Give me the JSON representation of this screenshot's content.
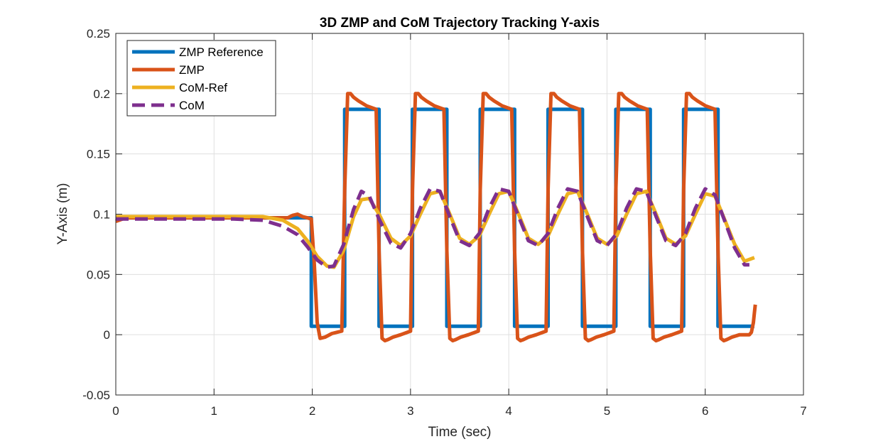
{
  "chart_data": {
    "type": "line",
    "title": "3D ZMP and CoM Trajectory Tracking Y-axis",
    "xlabel": "Time (sec)",
    "ylabel": "Y-Axis (m)",
    "xlim": [
      0,
      7
    ],
    "ylim": [
      -0.05,
      0.25
    ],
    "xticks": [
      0,
      1,
      2,
      3,
      4,
      5,
      6,
      7
    ],
    "xtick_labels": [
      "0",
      "1",
      "2",
      "3",
      "4",
      "5",
      "6",
      "7"
    ],
    "yticks": [
      -0.05,
      0,
      0.05,
      0.1,
      0.15,
      0.2,
      0.25
    ],
    "ytick_labels": [
      "-0.05",
      "0",
      "0.05",
      "0.1",
      "0.15",
      "0.2",
      "0.25"
    ],
    "grid": true,
    "legend_position": "top-left",
    "series": [
      {
        "name": "ZMP Reference",
        "color": "#0072BD",
        "style": "solid",
        "x": [
          0,
          1.99,
          1.99,
          2.33,
          2.33,
          2.68,
          2.68,
          3.02,
          3.02,
          3.37,
          3.37,
          3.71,
          3.71,
          4.06,
          4.06,
          4.4,
          4.4,
          4.75,
          4.75,
          5.09,
          5.09,
          5.44,
          5.44,
          5.78,
          5.78,
          6.13,
          6.13,
          6.5
        ],
        "y": [
          0.097,
          0.097,
          0.007,
          0.007,
          0.187,
          0.187,
          0.007,
          0.007,
          0.187,
          0.187,
          0.007,
          0.007,
          0.187,
          0.187,
          0.007,
          0.007,
          0.187,
          0.187,
          0.007,
          0.007,
          0.187,
          0.187,
          0.007,
          0.007,
          0.187,
          0.187,
          0.007,
          0.007
        ]
      },
      {
        "name": "ZMP",
        "color": "#D95319",
        "style": "solid",
        "x": [
          0,
          0.1,
          1.5,
          1.75,
          1.8,
          1.85,
          1.9,
          1.95,
          1.99,
          2.02,
          2.05,
          2.08,
          2.13,
          2.2,
          2.3,
          2.33,
          2.36,
          2.39,
          2.42,
          2.47,
          2.55,
          2.65,
          2.68,
          2.71,
          2.74,
          2.77,
          2.82,
          2.9,
          3.0,
          3.02,
          3.05,
          3.08,
          3.11,
          3.16,
          3.24,
          3.34,
          3.37,
          3.4,
          3.43,
          3.46,
          3.51,
          3.59,
          3.69,
          3.71,
          3.74,
          3.77,
          3.8,
          3.85,
          3.93,
          4.03,
          4.06,
          4.09,
          4.12,
          4.15,
          4.2,
          4.28,
          4.38,
          4.4,
          4.43,
          4.46,
          4.49,
          4.54,
          4.62,
          4.72,
          4.75,
          4.78,
          4.81,
          4.84,
          4.89,
          4.97,
          5.07,
          5.09,
          5.12,
          5.15,
          5.18,
          5.23,
          5.31,
          5.41,
          5.44,
          5.47,
          5.5,
          5.53,
          5.58,
          5.66,
          5.76,
          5.78,
          5.81,
          5.84,
          5.87,
          5.92,
          6.0,
          6.1,
          6.13,
          6.16,
          6.19,
          6.22,
          6.27,
          6.35,
          6.45,
          6.47,
          6.49,
          6.5,
          6.51
        ],
        "y": [
          0.094,
          0.097,
          0.097,
          0.097,
          0.099,
          0.1,
          0.098,
          0.097,
          0.096,
          0.06,
          0.01,
          -0.003,
          -0.002,
          0.001,
          0.003,
          0.12,
          0.2,
          0.2,
          0.197,
          0.194,
          0.19,
          0.187,
          0.07,
          -0.003,
          -0.005,
          -0.004,
          -0.002,
          0.0,
          0.003,
          0.12,
          0.2,
          0.2,
          0.197,
          0.194,
          0.19,
          0.187,
          0.07,
          -0.003,
          -0.005,
          -0.004,
          -0.002,
          0.0,
          0.003,
          0.12,
          0.2,
          0.2,
          0.197,
          0.194,
          0.19,
          0.187,
          0.07,
          -0.003,
          -0.005,
          -0.004,
          -0.002,
          0.0,
          0.003,
          0.12,
          0.2,
          0.2,
          0.197,
          0.194,
          0.19,
          0.187,
          0.07,
          -0.003,
          -0.005,
          -0.004,
          -0.002,
          0.0,
          0.003,
          0.12,
          0.2,
          0.2,
          0.197,
          0.194,
          0.19,
          0.187,
          0.07,
          -0.003,
          -0.005,
          -0.004,
          -0.002,
          0.0,
          0.003,
          0.12,
          0.2,
          0.2,
          0.197,
          0.194,
          0.19,
          0.187,
          0.07,
          -0.003,
          -0.005,
          -0.004,
          -0.002,
          0.0,
          0.0,
          0.002,
          0.01,
          0.018,
          0.025
        ]
      },
      {
        "name": "CoM-Ref",
        "color": "#EDB120",
        "style": "solid",
        "x": [
          0,
          1.5,
          1.7,
          1.85,
          1.95,
          2.05,
          2.15,
          2.22,
          2.32,
          2.42,
          2.5,
          2.58,
          2.68,
          2.8,
          2.9,
          3.0,
          3.1,
          3.2,
          3.3,
          3.4,
          3.5,
          3.6,
          3.7,
          3.8,
          3.9,
          4.0,
          4.1,
          4.2,
          4.3,
          4.4,
          4.5,
          4.6,
          4.7,
          4.8,
          4.9,
          5.0,
          5.1,
          5.2,
          5.3,
          5.4,
          5.5,
          5.6,
          5.7,
          5.8,
          5.9,
          6.0,
          6.1,
          6.2,
          6.3,
          6.4,
          6.5
        ],
        "y": [
          0.098,
          0.098,
          0.095,
          0.088,
          0.078,
          0.065,
          0.057,
          0.056,
          0.07,
          0.098,
          0.112,
          0.113,
          0.1,
          0.08,
          0.074,
          0.082,
          0.1,
          0.117,
          0.119,
          0.1,
          0.08,
          0.075,
          0.082,
          0.1,
          0.117,
          0.119,
          0.1,
          0.08,
          0.075,
          0.082,
          0.1,
          0.117,
          0.119,
          0.1,
          0.08,
          0.075,
          0.082,
          0.1,
          0.117,
          0.119,
          0.1,
          0.08,
          0.075,
          0.082,
          0.1,
          0.117,
          0.115,
          0.095,
          0.075,
          0.061,
          0.064
        ]
      },
      {
        "name": "CoM",
        "color": "#7E2F8E",
        "style": "dashed",
        "x": [
          0,
          1.2,
          1.5,
          1.7,
          1.85,
          1.95,
          2.05,
          2.15,
          2.22,
          2.32,
          2.42,
          2.5,
          2.58,
          2.68,
          2.8,
          2.9,
          3.0,
          3.1,
          3.2,
          3.3,
          3.4,
          3.5,
          3.6,
          3.7,
          3.8,
          3.9,
          4.0,
          4.1,
          4.2,
          4.3,
          4.4,
          4.5,
          4.6,
          4.7,
          4.8,
          4.9,
          5.0,
          5.1,
          5.2,
          5.3,
          5.4,
          5.5,
          5.6,
          5.7,
          5.8,
          5.9,
          6.0,
          6.1,
          6.2,
          6.3,
          6.4,
          6.45
        ],
        "y": [
          0.096,
          0.096,
          0.095,
          0.09,
          0.083,
          0.073,
          0.062,
          0.056,
          0.057,
          0.075,
          0.104,
          0.119,
          0.115,
          0.096,
          0.076,
          0.072,
          0.084,
          0.105,
          0.121,
          0.119,
          0.098,
          0.078,
          0.074,
          0.084,
          0.105,
          0.121,
          0.119,
          0.098,
          0.078,
          0.074,
          0.084,
          0.105,
          0.121,
          0.119,
          0.098,
          0.078,
          0.074,
          0.084,
          0.105,
          0.121,
          0.119,
          0.098,
          0.078,
          0.074,
          0.084,
          0.105,
          0.121,
          0.116,
          0.094,
          0.072,
          0.058,
          0.058
        ]
      }
    ]
  }
}
